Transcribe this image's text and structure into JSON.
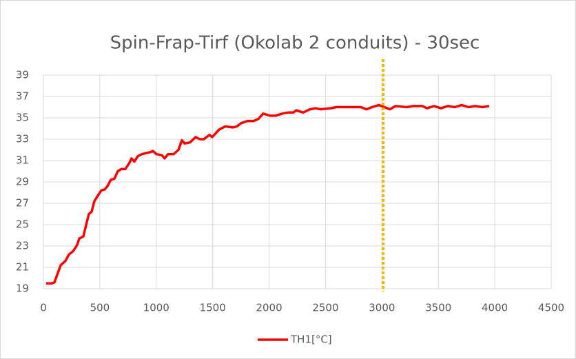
{
  "chart_data": {
    "type": "line",
    "title": "Spin-Frap-Tirf (Okolab 2 conduits) - 30sec",
    "series": [
      {
        "name": "TH1[°C]",
        "color": "#ff0000",
        "x": [
          24,
          73,
          98,
          122,
          153,
          195,
          226,
          262,
          299,
          318,
          354,
          379,
          403,
          427,
          452,
          488,
          513,
          543,
          568,
          598,
          629,
          659,
          690,
          726,
          763,
          781,
          806,
          836,
          873,
          910,
          952,
          971,
          1001,
          1050,
          1074,
          1105,
          1154,
          1197,
          1227,
          1252,
          1300,
          1349,
          1386,
          1422,
          1471,
          1496,
          1557,
          1612,
          1679,
          1716,
          1752,
          1807,
          1862,
          1905,
          1948,
          2009,
          2057,
          2118,
          2167,
          2216,
          2240,
          2302,
          2363,
          2411,
          2454,
          2546,
          2595,
          2656,
          2717,
          2814,
          2863,
          2912,
          2973,
          3022,
          3071,
          3120,
          3217,
          3278,
          3358,
          3400,
          3462,
          3523,
          3584,
          3645,
          3706,
          3767,
          3828,
          3889,
          3950
        ],
        "values": [
          19.5,
          19.5,
          19.6,
          20.3,
          21.2,
          21.6,
          22.2,
          22.5,
          23.1,
          23.7,
          23.9,
          25.0,
          26.0,
          26.2,
          27.2,
          27.8,
          28.2,
          28.3,
          28.6,
          29.2,
          29.3,
          30.0,
          30.2,
          30.2,
          30.8,
          31.2,
          30.9,
          31.4,
          31.6,
          31.7,
          31.8,
          31.9,
          31.6,
          31.5,
          31.2,
          31.6,
          31.6,
          32.0,
          32.9,
          32.6,
          32.7,
          33.2,
          33.0,
          33.0,
          33.4,
          33.2,
          33.9,
          34.2,
          34.1,
          34.2,
          34.5,
          34.7,
          34.7,
          34.9,
          35.4,
          35.2,
          35.2,
          35.4,
          35.5,
          35.5,
          35.7,
          35.5,
          35.8,
          35.9,
          35.8,
          35.9,
          36.0,
          36.0,
          36.0,
          36.0,
          35.8,
          36.0,
          36.2,
          36.0,
          35.8,
          36.1,
          36.0,
          36.1,
          36.1,
          35.9,
          36.1,
          35.9,
          36.1,
          36.0,
          36.2,
          36.0,
          36.1,
          36.0,
          36.1
        ]
      }
    ],
    "vline": {
      "x": 3010,
      "color": "#f5b800"
    },
    "xlim": [
      0,
      4500
    ],
    "xticks": [
      0,
      500,
      1000,
      1500,
      2000,
      2500,
      3000,
      3500,
      4000,
      4500
    ],
    "ylim": [
      19,
      39
    ],
    "yticks": [
      19,
      21,
      23,
      25,
      27,
      29,
      31,
      33,
      35,
      37,
      39
    ],
    "grid": true,
    "legend": "bottom"
  }
}
